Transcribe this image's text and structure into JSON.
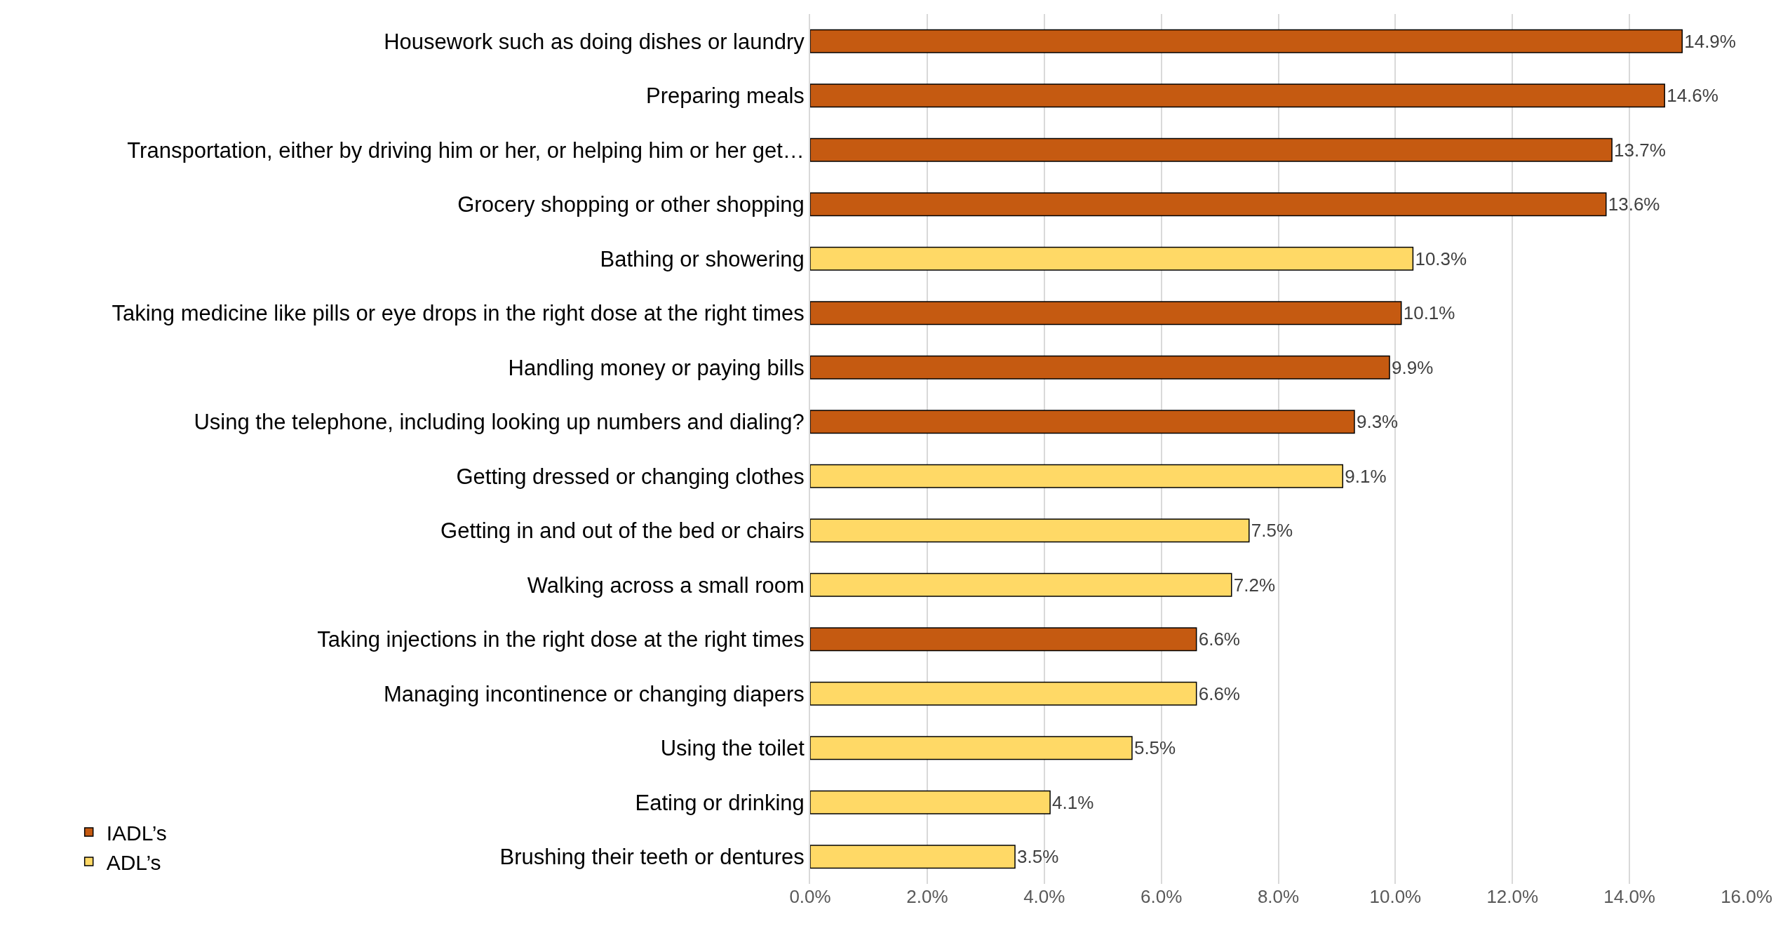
{
  "chart_data": {
    "type": "bar",
    "orientation": "horizontal",
    "categories": [
      "Housework such as doing dishes or laundry",
      "Preparing meals",
      "Transportation, either by driving him or her, or helping him or her get…",
      "Grocery shopping or other shopping",
      "Bathing or showering",
      "Taking medicine like pills or eye drops in the right dose at the right times",
      "Handling money or paying bills",
      "Using the telephone, including looking up numbers and dialing?",
      "Getting dressed or changing clothes",
      "Getting in and out of the bed or chairs",
      "Walking across a small room",
      "Taking injections in the right dose at the right times",
      "Managing incontinence or changing diapers",
      "Using the toilet",
      "Eating or drinking",
      "Brushing their teeth or dentures"
    ],
    "series": [
      {
        "name": "IADL’s",
        "color": "#c55a11",
        "values": [
          14.9,
          14.6,
          13.7,
          13.6,
          null,
          10.1,
          9.9,
          9.3,
          null,
          null,
          null,
          6.6,
          null,
          null,
          null,
          null
        ],
        "value_labels": [
          "14.9%",
          "14.6%",
          "13.7%",
          "13.6%",
          null,
          "10.1%",
          "9.9%",
          "9.3%",
          null,
          null,
          null,
          "6.6%",
          null,
          null,
          null,
          null
        ]
      },
      {
        "name": "ADL’s",
        "color": "#ffd966",
        "values": [
          null,
          null,
          null,
          null,
          10.3,
          null,
          null,
          null,
          9.1,
          7.5,
          7.2,
          null,
          6.6,
          5.5,
          4.1,
          3.5
        ],
        "value_labels": [
          null,
          null,
          null,
          null,
          "10.3%",
          null,
          null,
          null,
          "9.1%",
          "7.5%",
          "7.2%",
          null,
          "6.6%",
          "5.5%",
          "4.1%",
          "3.5%"
        ]
      }
    ],
    "xlim": [
      0,
      16
    ],
    "xticks": [
      {
        "value": 0,
        "label": "0.0%"
      },
      {
        "value": 2,
        "label": "2.0%"
      },
      {
        "value": 4,
        "label": "4.0%"
      },
      {
        "value": 6,
        "label": "6.0%"
      },
      {
        "value": 8,
        "label": "8.0%"
      },
      {
        "value": 10,
        "label": "10.0%"
      },
      {
        "value": 12,
        "label": "12.0%"
      },
      {
        "value": 14,
        "label": "14.0%"
      },
      {
        "value": 16,
        "label": "16.0%"
      }
    ],
    "grid": "x",
    "legend": "bottom left"
  }
}
